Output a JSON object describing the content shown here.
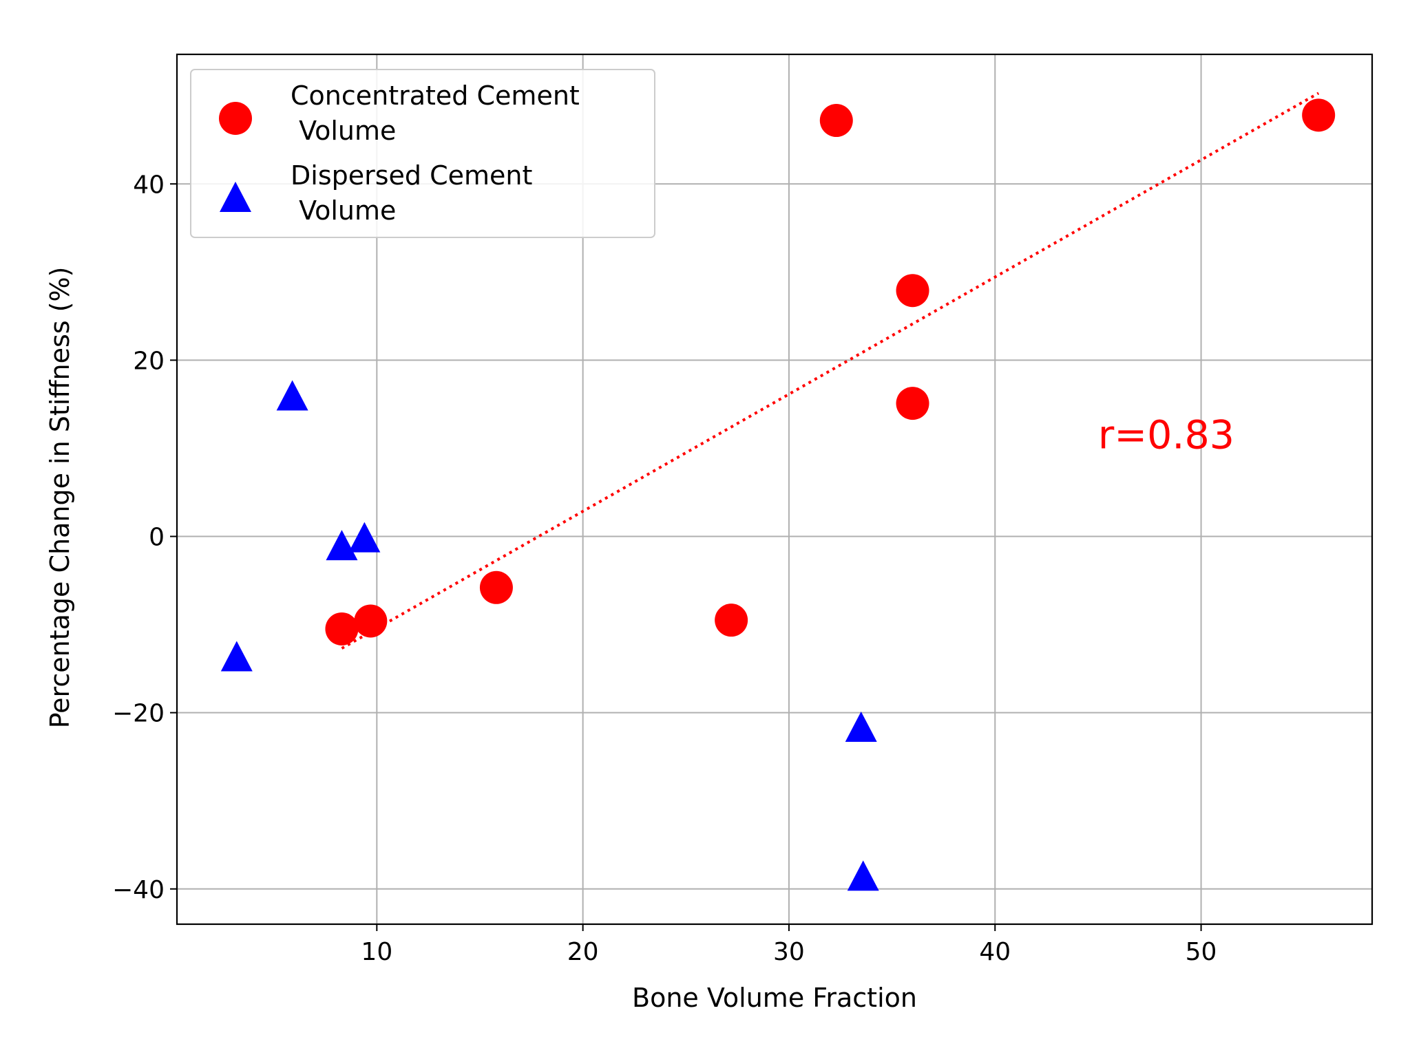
{
  "chart_data": {
    "type": "scatter",
    "xlabel": "Bone Volume Fraction",
    "ylabel": "Percentage Change in Stiffness (%)",
    "xlim": [
      0.3,
      58.3
    ],
    "ylim": [
      -44,
      54.7
    ],
    "xticks": [
      10,
      20,
      30,
      40,
      50
    ],
    "xtick_labels": [
      "10",
      "20",
      "30",
      "40",
      "50"
    ],
    "yticks": [
      -40,
      -20,
      0,
      20,
      40
    ],
    "ytick_labels": [
      "−40",
      "−20",
      "0",
      "20",
      "40"
    ],
    "grid": true,
    "legend_position": "top-left",
    "series": [
      {
        "name": "Concentrated Cement\n Volume",
        "legend_lines": [
          "Concentrated Cement",
          " Volume"
        ],
        "marker": "circle",
        "color": "#ff0000",
        "x": [
          8.3,
          9.7,
          15.8,
          27.2,
          32.3,
          36.0,
          36.0,
          55.7
        ],
        "y": [
          -10.5,
          -9.6,
          -5.8,
          -9.5,
          47.2,
          27.9,
          15.1,
          47.8
        ]
      },
      {
        "name": "Dispersed Cement\n Volume",
        "legend_lines": [
          "Dispersed Cement",
          " Volume"
        ],
        "marker": "triangle",
        "color": "#0000ff",
        "x": [
          3.2,
          5.9,
          8.3,
          9.4,
          33.5,
          33.6
        ],
        "y": [
          -13.9,
          15.7,
          -1.3,
          -0.4,
          -21.9,
          -38.8
        ]
      }
    ],
    "trendline": {
      "color": "#ff0000",
      "style": "dotted",
      "x": [
        8.3,
        55.7
      ],
      "y": [
        -12.7,
        50.3
      ]
    },
    "annotation": {
      "text": "r=0.83",
      "x": 45,
      "y": 10,
      "color": "#ff0000"
    }
  }
}
